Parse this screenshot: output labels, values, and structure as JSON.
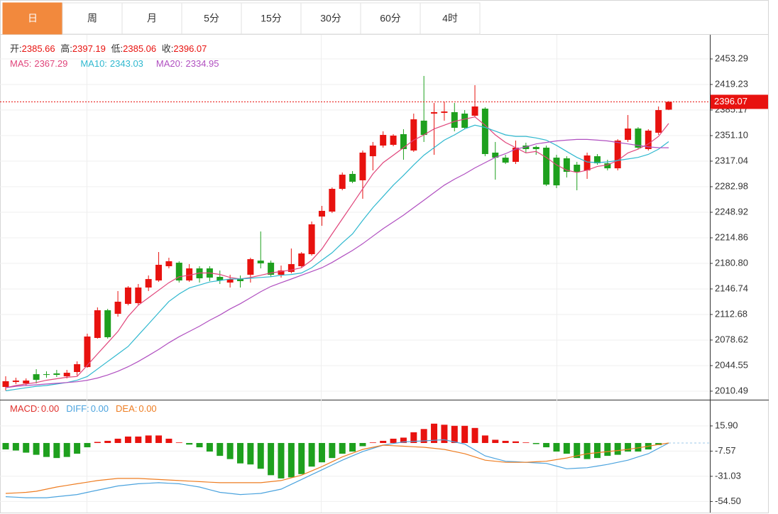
{
  "tabs": [
    "日",
    "周",
    "月",
    "5分",
    "15分",
    "30分",
    "60分",
    "4时"
  ],
  "active_tab": 0,
  "chart_data": {
    "type": "candlestick",
    "up_color": "#e8120f",
    "down_color": "#1ea01e",
    "ohlc_labels": [
      "开:",
      "高:",
      "低:",
      "收:"
    ],
    "open": [
      2016.1,
      2022.7,
      2020.8,
      2033.1,
      2033.1,
      2034.1,
      2030.3,
      2036.0,
      2042.6,
      2081.4,
      2118.3,
      2113.6,
      2126.8,
      2127.8,
      2148.6,
      2158.0,
      2177.0,
      2181.7,
      2158.0,
      2174.1,
      2174.1,
      2162.8,
      2155.2,
      2159.9,
      2165.6,
      2184.5,
      2181.7,
      2165.6,
      2169.4,
      2177.0,
      2193.1,
      2243.2,
      2249.8,
      2280.1,
      2300.0,
      2291.5,
      2323.6,
      2337.8,
      2338.8,
      2353.0,
      2331.2,
      2371.0,
      2380.4,
      2381.4,
      2382.3,
      2380.4,
      2377.6,
      2387.0,
      2328.4,
      2321.7,
      2316.1,
      2337.8,
      2335.9,
      2335.0,
      2321.7,
      2320.8,
      2312.3,
      2304.7,
      2323.6,
      2314.2,
      2307.5,
      2345.4,
      2360.5,
      2333.1,
      2354.9,
      2385.66
    ],
    "high": [
      2030.3,
      2028.4,
      2027.5,
      2039.8,
      2036.9,
      2038.8,
      2038.8,
      2050.2,
      2087.1,
      2122.1,
      2120.2,
      2143.9,
      2150.5,
      2153.3,
      2164.7,
      2195.9,
      2188.3,
      2183.6,
      2179.8,
      2177.0,
      2177.0,
      2171.3,
      2165.6,
      2164.7,
      2188.3,
      2223.3,
      2184.5,
      2177.9,
      2200.6,
      2195.9,
      2236.6,
      2257.4,
      2282.0,
      2301.9,
      2303.8,
      2331.2,
      2342.6,
      2356.8,
      2353.0,
      2359.6,
      2380.4,
      2430.6,
      2394.6,
      2396.5,
      2394.6,
      2385.1,
      2418.3,
      2388.9,
      2342.6,
      2325.5,
      2344.5,
      2341.6,
      2337.8,
      2337.8,
      2325.5,
      2323.6,
      2316.1,
      2328.4,
      2326.5,
      2318.9,
      2346.3,
      2378.5,
      2362.4,
      2359.6,
      2389.9,
      2397.19
    ],
    "low": [
      2011.4,
      2019.9,
      2018.0,
      2020.8,
      2028.4,
      2029.4,
      2027.5,
      2031.3,
      2041.7,
      2080.5,
      2080.5,
      2109.8,
      2124.9,
      2124.9,
      2143.9,
      2156.2,
      2174.1,
      2155.2,
      2156.2,
      2155.2,
      2157.1,
      2153.3,
      2148.6,
      2148.6,
      2155.2,
      2174.1,
      2162.8,
      2161.8,
      2167.5,
      2175.1,
      2191.2,
      2230.9,
      2247.9,
      2278.2,
      2287.7,
      2266.9,
      2304.7,
      2335.0,
      2336.9,
      2318.9,
      2329.3,
      2342.6,
      2325.5,
      2371.0,
      2356.8,
      2359.6,
      2375.7,
      2323.6,
      2292.4,
      2313.2,
      2313.2,
      2328.4,
      2325.5,
      2283.9,
      2281.1,
      2295.3,
      2278.2,
      2293.4,
      2312.3,
      2304.7,
      2304.7,
      2342.6,
      2333.1,
      2331.2,
      2352.0,
      2385.06
    ],
    "close": [
      2023.7,
      2024.6,
      2024.6,
      2025.6,
      2032.2,
      2032.2,
      2035.0,
      2046.4,
      2083.3,
      2118.3,
      2082.4,
      2129.7,
      2148.6,
      2148.6,
      2159.9,
      2178.9,
      2183.6,
      2158.0,
      2174.1,
      2160.9,
      2161.8,
      2158.0,
      2159.9,
      2157.1,
      2186.4,
      2180.8,
      2165.6,
      2171.3,
      2179.8,
      2194.0,
      2232.8,
      2250.8,
      2280.1,
      2299.0,
      2289.6,
      2328.4,
      2337.8,
      2352.0,
      2351.1,
      2333.1,
      2372.8,
      2352.0,
      2382.3,
      2383.2,
      2361.5,
      2361.5,
      2389.9,
      2326.5,
      2321.7,
      2315.1,
      2335.0,
      2333.1,
      2333.1,
      2285.8,
      2284.8,
      2302.8,
      2302.8,
      2324.6,
      2314.2,
      2307.5,
      2344.5,
      2360.5,
      2335.0,
      2357.7,
      2385.1,
      2396.07
    ],
    "series": [
      {
        "name": "MA5:",
        "color": "#e0457b",
        "values": [
          2015,
          2018,
          2020,
          2022,
          2025,
          2027,
          2029,
          2030,
          2045,
          2060,
          2075,
          2090,
          2110,
          2125,
          2135,
          2145,
          2155,
          2163,
          2165,
          2168,
          2168,
          2166,
          2162,
          2160,
          2162,
          2165,
          2168,
          2170,
          2172,
          2175,
          2185,
          2200,
          2220,
          2240,
          2260,
          2280,
          2300,
          2315,
          2325,
          2335,
          2345,
          2352,
          2360,
          2365,
          2370,
          2373,
          2376,
          2365,
          2352,
          2342,
          2335,
          2328,
          2330,
          2322,
          2312,
          2305,
          2302,
          2305,
          2310,
          2312,
          2318,
          2328,
          2333,
          2340,
          2350,
          2367.29
        ]
      },
      {
        "name": "MA10:",
        "color": "#2fb8cf",
        "values": [
          2011,
          2013,
          2015,
          2017,
          2018,
          2020,
          2022,
          2025,
          2030,
          2040,
          2050,
          2060,
          2070,
          2085,
          2100,
          2115,
          2130,
          2140,
          2148,
          2152,
          2156,
          2158,
          2160,
          2160,
          2161,
          2162,
          2163,
          2165,
          2166,
          2168,
          2175,
          2185,
          2195,
          2208,
          2220,
          2238,
          2255,
          2270,
          2285,
          2298,
          2312,
          2325,
          2335,
          2345,
          2352,
          2360,
          2365,
          2362,
          2357,
          2352,
          2350,
          2350,
          2348,
          2345,
          2338,
          2330,
          2322,
          2316,
          2315,
          2316,
          2318,
          2320,
          2322,
          2326,
          2333,
          2343.03
        ]
      },
      {
        "name": "MA20:",
        "color": "#b04fc0",
        "values": [
          2015,
          2017,
          2018,
          2019,
          2020,
          2021,
          2022,
          2023,
          2025,
          2028,
          2032,
          2037,
          2043,
          2050,
          2058,
          2066,
          2075,
          2083,
          2090,
          2097,
          2105,
          2112,
          2120,
          2127,
          2135,
          2143,
          2150,
          2155,
          2160,
          2165,
          2170,
          2175,
          2182,
          2190,
          2198,
          2207,
          2217,
          2227,
          2236,
          2245,
          2255,
          2265,
          2275,
          2285,
          2293,
          2300,
          2308,
          2315,
          2322,
          2327,
          2333,
          2336,
          2340,
          2342,
          2344,
          2345,
          2346,
          2346,
          2345,
          2344,
          2342,
          2340,
          2338,
          2336,
          2335,
          2334.95
        ]
      }
    ],
    "ylim": [
      1999.1,
      2484.5
    ],
    "yticks": [
      2010.49,
      2044.55,
      2078.62,
      2112.68,
      2146.74,
      {
        "value": 2180.8,
        "label": "2180.80"
      },
      2214.86,
      2248.92,
      2282.98,
      2317.04,
      {
        "value": 2351.1,
        "label": "2351.10"
      },
      2385.17,
      2419.23,
      2453.29
    ],
    "macd": {
      "ylim": [
        -63.5,
        39.0
      ],
      "yticks": [
        {
          "value": 15.9,
          "label": "15.90"
        },
        -7.57,
        -31.03,
        {
          "value": -54.5,
          "label": "-54.50"
        }
      ],
      "histogram": {
        "name": "MACD:",
        "color": "#e0302c",
        "value_label": "0.00",
        "values": [
          -6,
          -7,
          -9,
          -11,
          -13,
          -14,
          -13,
          -10,
          -4,
          1,
          2,
          4,
          6,
          6,
          7,
          7,
          4,
          0.5,
          -1.5,
          -4,
          -8,
          -12,
          -15,
          -19,
          -20,
          -24,
          -30,
          -33,
          -32,
          -29,
          -22,
          -18,
          -14,
          -10,
          -8,
          -3,
          0.5,
          2,
          4,
          5,
          10,
          13,
          18,
          17,
          16,
          16,
          14,
          7,
          3,
          2,
          1.5,
          0.5,
          -1,
          -4,
          -8,
          -10,
          -14,
          -15,
          -14,
          -12,
          -11,
          -8,
          -8,
          -6,
          -2,
          0
        ]
      },
      "lines": [
        {
          "name": "DIFF:",
          "color": "#4ba3de",
          "value_label": "0.00",
          "values": [
            -50,
            -50.5,
            -51,
            -51,
            -51,
            -50,
            -49,
            -48,
            -46,
            -44,
            -42,
            -40,
            -39,
            -38,
            -37.5,
            -37,
            -37.5,
            -38,
            -39.5,
            -41,
            -43.5,
            -46,
            -47,
            -48,
            -47.5,
            -47,
            -45,
            -43,
            -38.5,
            -34,
            -29.5,
            -25,
            -20.5,
            -16,
            -12,
            -8,
            -5,
            -2,
            -0.5,
            1,
            1.5,
            2,
            2.5,
            3,
            1,
            -1,
            -6.5,
            -12,
            -14.5,
            -17,
            -17.5,
            -18,
            -18.5,
            -19,
            -21.5,
            -24,
            -23.5,
            -23,
            -21.5,
            -20,
            -18,
            -16,
            -13,
            -10,
            -5,
            0
          ]
        },
        {
          "name": "DEA:",
          "color": "#ee7d22",
          "value_label": "0.00",
          "values": [
            -47,
            -46.5,
            -46,
            -45,
            -43,
            -41,
            -39.5,
            -38,
            -36.5,
            -35,
            -34,
            -33,
            -33,
            -33,
            -33.5,
            -34,
            -34.5,
            -35,
            -35.5,
            -36,
            -36.5,
            -37,
            -37,
            -37,
            -37,
            -37,
            -36,
            -35,
            -32.5,
            -30,
            -26,
            -22,
            -17.5,
            -13,
            -9.5,
            -6,
            -4,
            -2,
            -2.5,
            -3,
            -3.5,
            -4,
            -5,
            -6,
            -8,
            -10,
            -13,
            -16,
            -17,
            -18,
            -18,
            -18,
            -17.5,
            -17,
            -15.5,
            -14,
            -12,
            -10,
            -9,
            -8,
            -7,
            -6,
            -4.5,
            -3,
            -1.5,
            0
          ]
        }
      ]
    }
  }
}
